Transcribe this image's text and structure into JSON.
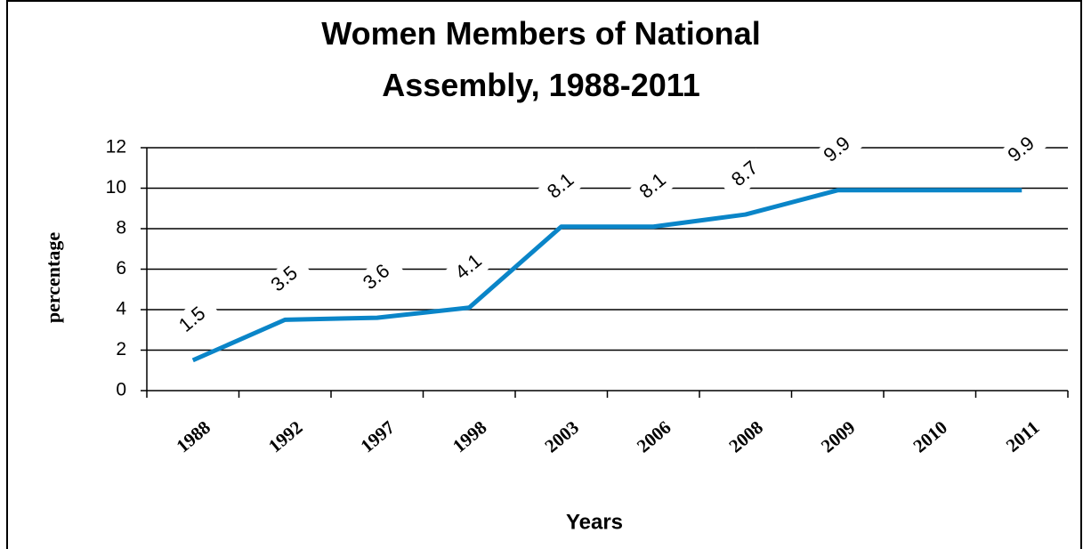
{
  "chart_data": {
    "type": "line",
    "title": "Women Members of National Assembly, 1988-2011",
    "x_label": "Years",
    "y_label": "percentage",
    "categories": [
      "1988",
      "1992",
      "1997",
      "1998",
      "2003",
      "2006",
      "2008",
      "2009",
      "2010",
      "2011"
    ],
    "values": [
      1.5,
      3.5,
      3.6,
      4.1,
      8.1,
      8.1,
      8.7,
      9.9,
      9.9,
      9.9
    ],
    "value_labels": [
      "1.5",
      "3.5",
      "3.6",
      "4.1",
      "8.1",
      "8.1",
      "8.7",
      "9.9",
      null,
      "9.9"
    ],
    "color": "#0a85c8",
    "ylim": [
      0,
      12
    ],
    "yticks": [
      0,
      2,
      4,
      6,
      8,
      10,
      12
    ],
    "grid": true
  }
}
